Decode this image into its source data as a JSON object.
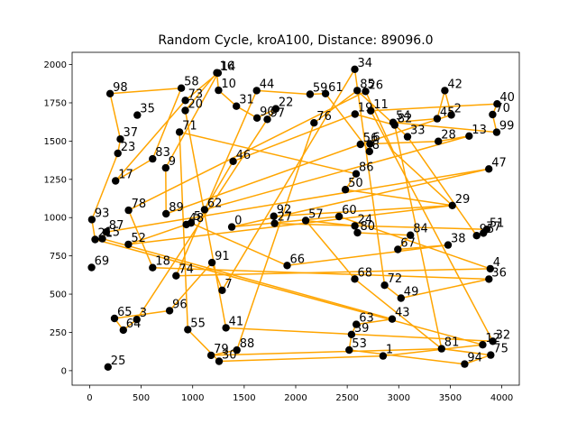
{
  "chart_data": {
    "type": "scatter",
    "title": "Random Cycle, kroA100, Distance: 89096.0",
    "xlabel": "",
    "ylabel": "",
    "xlim": [
      -170,
      4170
    ],
    "ylim": [
      -95,
      2080
    ],
    "xticks": [
      0,
      500,
      1000,
      1500,
      2000,
      2500,
      3000,
      3500,
      4000
    ],
    "yticks": [
      0,
      250,
      500,
      750,
      1000,
      1250,
      1500,
      1750,
      2000
    ],
    "grid": false,
    "legend": "none",
    "colors": {
      "points": "#000000",
      "path": "#ffa500"
    },
    "points": [
      {
        "id": 0,
        "x": 1380,
        "y": 939
      },
      {
        "id": 1,
        "x": 2848,
        "y": 96
      },
      {
        "id": 2,
        "x": 3510,
        "y": 1671
      },
      {
        "id": 3,
        "x": 457,
        "y": 334
      },
      {
        "id": 4,
        "x": 3888,
        "y": 666
      },
      {
        "id": 5,
        "x": 984,
        "y": 965
      },
      {
        "id": 6,
        "x": 2721,
        "y": 1482
      },
      {
        "id": 7,
        "x": 1286,
        "y": 525
      },
      {
        "id": 8,
        "x": 2716,
        "y": 1432
      },
      {
        "id": 9,
        "x": 738,
        "y": 1325
      },
      {
        "id": 10,
        "x": 1251,
        "y": 1832
      },
      {
        "id": 11,
        "x": 2728,
        "y": 1698
      },
      {
        "id": 12,
        "x": 3815,
        "y": 169
      },
      {
        "id": 13,
        "x": 3683,
        "y": 1533
      },
      {
        "id": 14,
        "x": 1247,
        "y": 1945
      },
      {
        "id": 15,
        "x": 123,
        "y": 862
      },
      {
        "id": 16,
        "x": 1234,
        "y": 1946
      },
      {
        "id": 17,
        "x": 252,
        "y": 1240
      },
      {
        "id": 18,
        "x": 611,
        "y": 673
      },
      {
        "id": 19,
        "x": 2576,
        "y": 1676
      },
      {
        "id": 20,
        "x": 928,
        "y": 1700
      },
      {
        "id": 21,
        "x": 53,
        "y": 857
      },
      {
        "id": 22,
        "x": 1807,
        "y": 1711
      },
      {
        "id": 23,
        "x": 274,
        "y": 1420
      },
      {
        "id": 24,
        "x": 2574,
        "y": 946
      },
      {
        "id": 25,
        "x": 178,
        "y": 24
      },
      {
        "id": 26,
        "x": 2678,
        "y": 1825
      },
      {
        "id": 27,
        "x": 1795,
        "y": 962
      },
      {
        "id": 28,
        "x": 3384,
        "y": 1498
      },
      {
        "id": 29,
        "x": 3520,
        "y": 1079
      },
      {
        "id": 30,
        "x": 1256,
        "y": 61
      },
      {
        "id": 31,
        "x": 1424,
        "y": 1728
      },
      {
        "id": 32,
        "x": 3913,
        "y": 192
      },
      {
        "id": 33,
        "x": 3085,
        "y": 1528
      },
      {
        "id": 34,
        "x": 2573,
        "y": 1969
      },
      {
        "id": 35,
        "x": 463,
        "y": 1670
      },
      {
        "id": 36,
        "x": 3875,
        "y": 598
      },
      {
        "id": 37,
        "x": 298,
        "y": 1513
      },
      {
        "id": 38,
        "x": 3479,
        "y": 821
      },
      {
        "id": 39,
        "x": 2542,
        "y": 236
      },
      {
        "id": 40,
        "x": 3955,
        "y": 1743
      },
      {
        "id": 41,
        "x": 1323,
        "y": 280
      },
      {
        "id": 42,
        "x": 3447,
        "y": 1830
      },
      {
        "id": 43,
        "x": 2936,
        "y": 337
      },
      {
        "id": 44,
        "x": 1621,
        "y": 1830
      },
      {
        "id": 45,
        "x": 3373,
        "y": 1646
      },
      {
        "id": 46,
        "x": 1393,
        "y": 1368
      },
      {
        "id": 47,
        "x": 3874,
        "y": 1318
      },
      {
        "id": 48,
        "x": 938,
        "y": 955
      },
      {
        "id": 49,
        "x": 3022,
        "y": 474
      },
      {
        "id": 50,
        "x": 2482,
        "y": 1183
      },
      {
        "id": 51,
        "x": 3854,
        "y": 923
      },
      {
        "id": 52,
        "x": 376,
        "y": 825
      },
      {
        "id": 53,
        "x": 2519,
        "y": 135
      },
      {
        "id": 54,
        "x": 2945,
        "y": 1622
      },
      {
        "id": 55,
        "x": 953,
        "y": 268
      },
      {
        "id": 56,
        "x": 2628,
        "y": 1479
      },
      {
        "id": 57,
        "x": 2097,
        "y": 981
      },
      {
        "id": 58,
        "x": 890,
        "y": 1846
      },
      {
        "id": 59,
        "x": 2139,
        "y": 1806
      },
      {
        "id": 60,
        "x": 2421,
        "y": 1007
      },
      {
        "id": 61,
        "x": 2290,
        "y": 1810
      },
      {
        "id": 62,
        "x": 1115,
        "y": 1052
      },
      {
        "id": 63,
        "x": 2588,
        "y": 302
      },
      {
        "id": 64,
        "x": 327,
        "y": 265
      },
      {
        "id": 65,
        "x": 241,
        "y": 341
      },
      {
        "id": 66,
        "x": 1917,
        "y": 687
      },
      {
        "id": 67,
        "x": 2991,
        "y": 792
      },
      {
        "id": 68,
        "x": 2573,
        "y": 599
      },
      {
        "id": 69,
        "x": 19,
        "y": 674
      },
      {
        "id": 70,
        "x": 3911,
        "y": 1673
      },
      {
        "id": 71,
        "x": 872,
        "y": 1559
      },
      {
        "id": 72,
        "x": 2863,
        "y": 558
      },
      {
        "id": 73,
        "x": 929,
        "y": 1766
      },
      {
        "id": 74,
        "x": 839,
        "y": 620
      },
      {
        "id": 75,
        "x": 3893,
        "y": 102
      },
      {
        "id": 76,
        "x": 2178,
        "y": 1619
      },
      {
        "id": 77,
        "x": 3822,
        "y": 899
      },
      {
        "id": 78,
        "x": 378,
        "y": 1048
      },
      {
        "id": 79,
        "x": 1178,
        "y": 100
      },
      {
        "id": 80,
        "x": 2599,
        "y": 901
      },
      {
        "id": 81,
        "x": 3416,
        "y": 143
      },
      {
        "id": 82,
        "x": 2961,
        "y": 1605
      },
      {
        "id": 83,
        "x": 611,
        "y": 1384
      },
      {
        "id": 84,
        "x": 3113,
        "y": 885
      },
      {
        "id": 85,
        "x": 2597,
        "y": 1830
      },
      {
        "id": 86,
        "x": 2586,
        "y": 1286
      },
      {
        "id": 87,
        "x": 161,
        "y": 906
      },
      {
        "id": 88,
        "x": 1429,
        "y": 134
      },
      {
        "id": 89,
        "x": 742,
        "y": 1025
      },
      {
        "id": 90,
        "x": 1625,
        "y": 1651
      },
      {
        "id": 91,
        "x": 1187,
        "y": 706
      },
      {
        "id": 92,
        "x": 1787,
        "y": 1009
      },
      {
        "id": 93,
        "x": 22,
        "y": 987
      },
      {
        "id": 94,
        "x": 3640,
        "y": 43
      },
      {
        "id": 95,
        "x": 3756,
        "y": 882
      },
      {
        "id": 96,
        "x": 776,
        "y": 392
      },
      {
        "id": 97,
        "x": 1724,
        "y": 1642
      },
      {
        "id": 98,
        "x": 198,
        "y": 1810
      },
      {
        "id": 99,
        "x": 3950,
        "y": 1558
      }
    ],
    "path_x": [
      2728,
      3913,
      1323,
      928,
      1234,
      1251,
      1424,
      1625,
      1807,
      1724,
      457,
      327,
      241,
      776,
      1187,
      1286,
      2573,
      2863,
      3022,
      3875,
      611,
      378,
      2678,
      2948,
      3520,
      1787,
      1795,
      3854,
      3822,
      3756,
      3085,
      2597,
      2178,
      1429,
      1178,
      3416,
      3893,
      3640,
      2519,
      2542,
      2588,
      2936,
      123,
      161,
      3874,
      1380,
      2421,
      3888,
      839,
      1621,
      2139,
      2290,
      2716,
      2721,
      3384,
      3683,
      1115,
      1393,
      2576,
      2961,
      3416,
      2573,
      2097,
      2574,
      2599,
      3113,
      2991,
      3479,
      1917,
      984,
      938,
      376,
      3520,
      2482,
      2586,
      872,
      953,
      1256,
      2848,
      3815,
      53,
      22,
      274,
      298,
      198,
      890,
      611,
      252,
      929,
      1247,
      738,
      742,
      2628,
      3510,
      3447,
      3373,
      2945,
      3950,
      3911,
      3955,
      2728
    ],
    "path_y": [
      1698,
      192,
      280,
      1700,
      1946,
      1832,
      1728,
      1651,
      1711,
      1642,
      334,
      265,
      341,
      392,
      706,
      525,
      1969,
      558,
      474,
      598,
      673,
      1048,
      1825,
      1432,
      1079,
      1009,
      962,
      923,
      899,
      882,
      1528,
      1830,
      1619,
      134,
      100,
      143,
      102,
      43,
      135,
      236,
      302,
      337,
      862,
      906,
      1318,
      939,
      1007,
      666,
      620,
      1830,
      1806,
      1810,
      1432,
      1482,
      1498,
      1533,
      1052,
      1368,
      1676,
      1605,
      143,
      599,
      981,
      946,
      901,
      885,
      792,
      821,
      687,
      965,
      955,
      825,
      1079,
      1183,
      1286,
      1559,
      268,
      61,
      96,
      169,
      857,
      987,
      1420,
      1513,
      1810,
      1846,
      1384,
      1240,
      1766,
      1945,
      1325,
      1025,
      1479,
      1671,
      1830,
      1646,
      1622,
      1558,
      1673,
      1743,
      1698
    ]
  }
}
